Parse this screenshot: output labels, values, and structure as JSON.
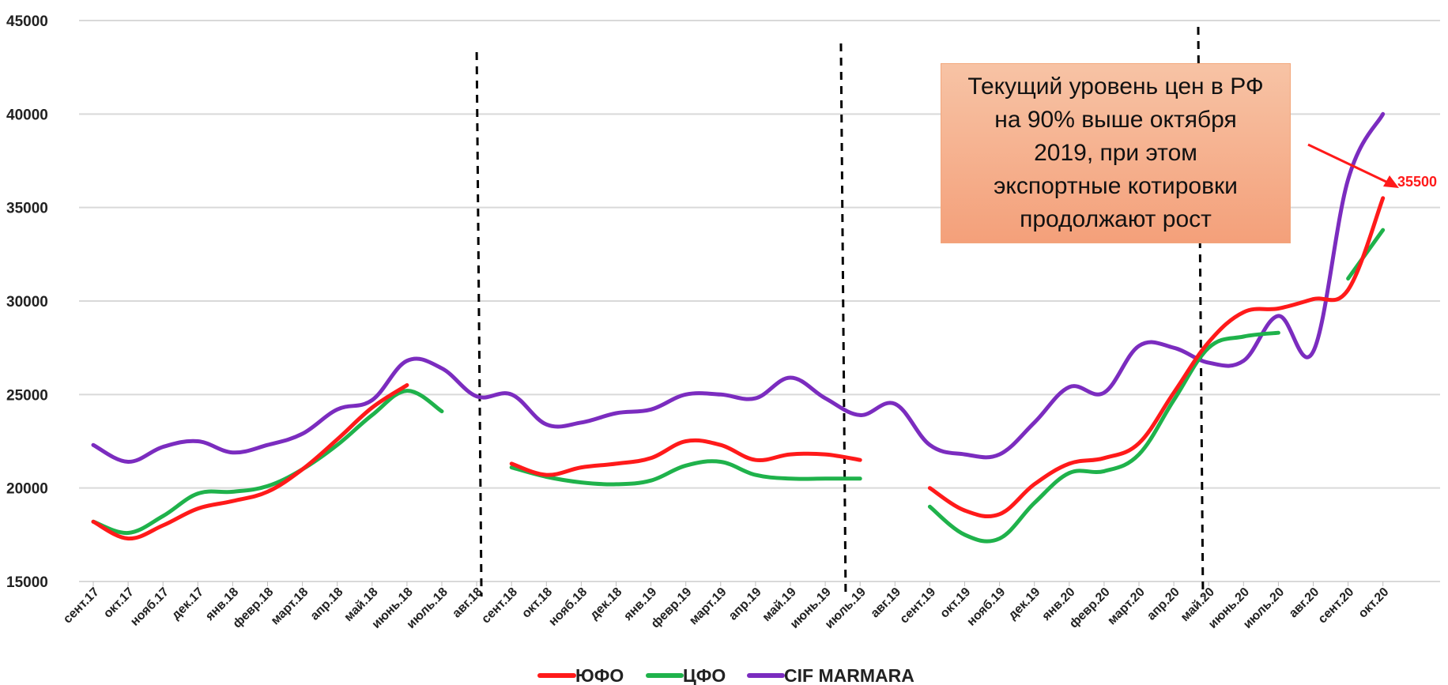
{
  "chart_data": {
    "type": "line",
    "categories": [
      "сент.17",
      "окт.17",
      "нояб.17",
      "дек.17",
      "янв.18",
      "февр.18",
      "март.18",
      "апр.18",
      "май.18",
      "июнь.18",
      "июль.18",
      "авг.18",
      "сент.18",
      "окт.18",
      "нояб.18",
      "дек.18",
      "янв.19",
      "февр.19",
      "март.19",
      "апр.19",
      "май.19",
      "июнь.19",
      "июль.19",
      "авг.19",
      "сент.19",
      "окт.19",
      "нояб.19",
      "дек.19",
      "янв.20",
      "февр.20",
      "март.20",
      "апр.20",
      "май.20",
      "июнь.20",
      "июль.20",
      "авг.20",
      "сент.20",
      "окт.20"
    ],
    "ylim": [
      15000,
      45000
    ],
    "yticks": [
      "15000",
      "20000",
      "25000",
      "30000",
      "35000",
      "40000",
      "45000"
    ],
    "grid": true,
    "legend": "bottom",
    "series": [
      {
        "name": "ЮФО",
        "color": "#ff1a1a",
        "values": [
          18200,
          17300,
          18000,
          18900,
          19300,
          19800,
          21000,
          22600,
          24300,
          25500,
          null,
          null,
          21300,
          20700,
          21100,
          21300,
          21600,
          22500,
          22300,
          21500,
          21800,
          21800,
          21500,
          null,
          20000,
          18800,
          18600,
          20200,
          21300,
          21600,
          22400,
          25100,
          27800,
          29400,
          29600,
          30100,
          30600,
          35500
        ]
      },
      {
        "name": "ЦФО",
        "color": "#1fb24b",
        "values": [
          18200,
          17600,
          18500,
          19700,
          19800,
          20100,
          21000,
          22300,
          23900,
          25200,
          24100,
          null,
          21100,
          20600,
          20300,
          20200,
          20400,
          21200,
          21400,
          20700,
          20500,
          20500,
          20500,
          null,
          19000,
          17500,
          17300,
          19200,
          20800,
          20900,
          21800,
          24700,
          27500,
          28100,
          28300,
          null,
          31200,
          33800
        ]
      },
      {
        "name": "CIF MARMARA",
        "color": "#7b2cbf",
        "values": [
          22300,
          21400,
          22200,
          22500,
          21900,
          22300,
          22900,
          24200,
          24700,
          26800,
          26400,
          24900,
          25000,
          23400,
          23500,
          24000,
          24200,
          25000,
          25000,
          24800,
          25900,
          24800,
          23900,
          24500,
          22300,
          21800,
          21800,
          23500,
          25400,
          25100,
          27600,
          27500,
          26700,
          26800,
          29200,
          27300,
          36500,
          40000
        ]
      }
    ],
    "annotations": {
      "value_label": "35500"
    }
  },
  "callout": {
    "text": "Текущий уровень цен в РФ\nна 90% выше октября\n2019, при этом\nэкспортные котировки\nпродолжают рост"
  },
  "colors": {
    "grid": "#d9d9d9",
    "divider": "#000000",
    "arrow": "#ff1a1a",
    "callout_fill": "#f4a07a"
  }
}
